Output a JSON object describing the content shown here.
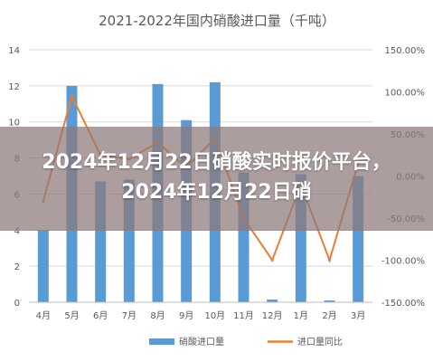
{
  "chart_data": {
    "type": "bar",
    "title": "2021-2022年国内硝酸进口量（千吨）",
    "categories": [
      "4月",
      "5月",
      "6月",
      "7月",
      "8月",
      "9月",
      "10月",
      "11月",
      "12月",
      "1月",
      "2月",
      "3月"
    ],
    "series": [
      {
        "name": "硝酸进口量",
        "type": "bar",
        "axis": "left",
        "color": "#5b9bd5",
        "values": [
          4.0,
          12.0,
          6.7,
          6.8,
          12.1,
          10.1,
          12.2,
          7.2,
          0.15,
          7.1,
          0.1,
          7.0
        ]
      },
      {
        "name": "进口量同比",
        "type": "line",
        "axis": "right",
        "color": "#ed7d31",
        "values": [
          -30,
          95,
          25,
          20,
          40,
          10,
          45,
          -50,
          -100,
          -10,
          -100,
          15
        ]
      }
    ],
    "ylim": [
      0,
      14
    ],
    "yticks": [
      "0",
      "2",
      "4",
      "6",
      "8",
      "10",
      "12",
      "14"
    ],
    "y2lim": [
      -150,
      150
    ],
    "y2ticks": [
      "-150.00%",
      "-100.00%",
      "-50.00%",
      "0.00%",
      "50.00%",
      "100.00%",
      "150.00%"
    ],
    "grid": true,
    "legend_position": "bottom"
  },
  "overlay": {
    "text": "2024年12月22日硝酸实时报价平台，2024年12月22日硝"
  }
}
